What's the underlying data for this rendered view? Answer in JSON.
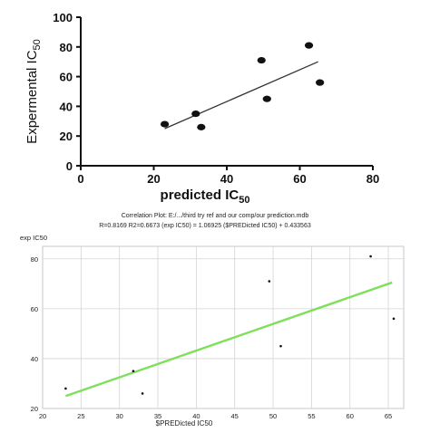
{
  "chart_data": [
    {
      "type": "scatter",
      "xlabel": "predicted IC",
      "xlabel_sub": "50",
      "ylabel": "Expermental IC",
      "ylabel_sub": "50",
      "xlim": [
        0,
        80
      ],
      "ylim": [
        0,
        100
      ],
      "xticks": [
        0,
        20,
        40,
        60,
        80
      ],
      "yticks": [
        0,
        20,
        40,
        60,
        80,
        100
      ],
      "grid": false,
      "points": [
        {
          "x": 23,
          "y": 28
        },
        {
          "x": 31.5,
          "y": 35
        },
        {
          "x": 33,
          "y": 26
        },
        {
          "x": 49.5,
          "y": 71
        },
        {
          "x": 51,
          "y": 45
        },
        {
          "x": 62.5,
          "y": 81
        },
        {
          "x": 65.5,
          "y": 56
        }
      ],
      "fit_line": {
        "x0": 23,
        "y0": 25,
        "x1": 65,
        "y1": 70
      },
      "point_color": "#111111",
      "line_color": "#333333"
    },
    {
      "type": "scatter",
      "title_line1": "Correlation Plot: E:/.../third try ref and our comp/our prediction.mdb",
      "title_line2": "R=0.8169 R2=0.6673     (exp IC50) = 1.06925 ($PREDicted IC50) + 0.433563",
      "xlabel": "$PREDicted IC50",
      "ylabel": "exp IC50",
      "xlim": [
        20,
        67
      ],
      "ylim": [
        20,
        85
      ],
      "xticks": [
        20,
        25,
        30,
        35,
        40,
        45,
        50,
        55,
        60,
        65
      ],
      "yticks": [
        20,
        40,
        60,
        80
      ],
      "grid": true,
      "points": [
        {
          "x": 23,
          "y": 28
        },
        {
          "x": 31.8,
          "y": 35
        },
        {
          "x": 33,
          "y": 26
        },
        {
          "x": 49.5,
          "y": 71
        },
        {
          "x": 51,
          "y": 45
        },
        {
          "x": 62.7,
          "y": 81
        },
        {
          "x": 65.7,
          "y": 56
        }
      ],
      "fit_line": {
        "x0": 23,
        "y0": 25,
        "x1": 65.5,
        "y1": 70.5
      },
      "point_color": "#111111",
      "line_color": "#7ee05a",
      "grid_color": "#d4d4d4",
      "frame_color": "#c7c7c7"
    }
  ]
}
